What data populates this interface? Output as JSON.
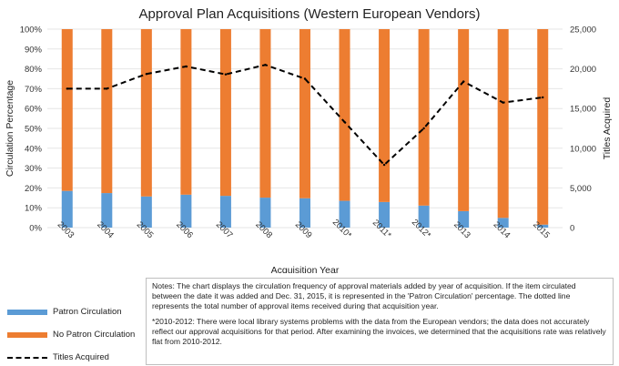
{
  "chart_data": {
    "type": "bar+line",
    "title": "Approval Plan Acquisitions (Western European Vendors)",
    "xlabel": "Acquisition Year",
    "ylabel": "Circulation Percentage",
    "y2label": "Titles Acquired",
    "categories": [
      "2003",
      "2004",
      "2005",
      "2006",
      "2007",
      "2008",
      "2009",
      "2010*",
      "2011*",
      "2012*",
      "2013",
      "2014",
      "2015"
    ],
    "ylim": [
      0,
      100
    ],
    "yticks": [
      "0%",
      "10%",
      "20%",
      "30%",
      "40%",
      "50%",
      "60%",
      "70%",
      "80%",
      "90%",
      "100%"
    ],
    "y2lim": [
      0,
      25000
    ],
    "y2ticks": [
      "0",
      "5,000",
      "10,000",
      "15,000",
      "20,000",
      "25,000"
    ],
    "grid": true,
    "series": [
      {
        "name": "Patron Circulation",
        "type": "stacked-bar",
        "color": "#5b9bd5",
        "values": [
          18.5,
          17.4,
          15.7,
          16.6,
          16.0,
          15.1,
          14.8,
          13.5,
          12.9,
          11.1,
          8.3,
          4.9,
          1.5
        ]
      },
      {
        "name": "No Patron Circulation",
        "type": "stacked-bar",
        "color": "#ed7d31",
        "values": [
          81.5,
          82.6,
          84.3,
          83.4,
          84.0,
          84.9,
          85.2,
          86.5,
          87.1,
          88.9,
          91.7,
          95.1,
          98.5
        ]
      },
      {
        "name": "Titles Acquired",
        "type": "line",
        "axis": "right",
        "style": "dashed",
        "color": "#000000",
        "values": [
          17500,
          17500,
          19350,
          20300,
          19300,
          20500,
          18750,
          13300,
          7900,
          12500,
          18400,
          15750,
          16400
        ]
      }
    ],
    "legend": "bottom-left"
  },
  "notes": {
    "p1": "Notes: The chart displays the circulation frequency of approval materials added by year of acquisition. If the item circulated between the date it was added and Dec. 31, 2015, it is represented in the 'Patron Circulation' percentage. The dotted line represents the total number of approval items received during that acquisition year.",
    "p2": "*2010-2012: There were local library systems problems with the data from the European vendors; the data does not accurately reflect our approval acquisitions for that period. After examining the invoices, we determined that the acquisitions rate was relatively flat from 2010-2012."
  }
}
